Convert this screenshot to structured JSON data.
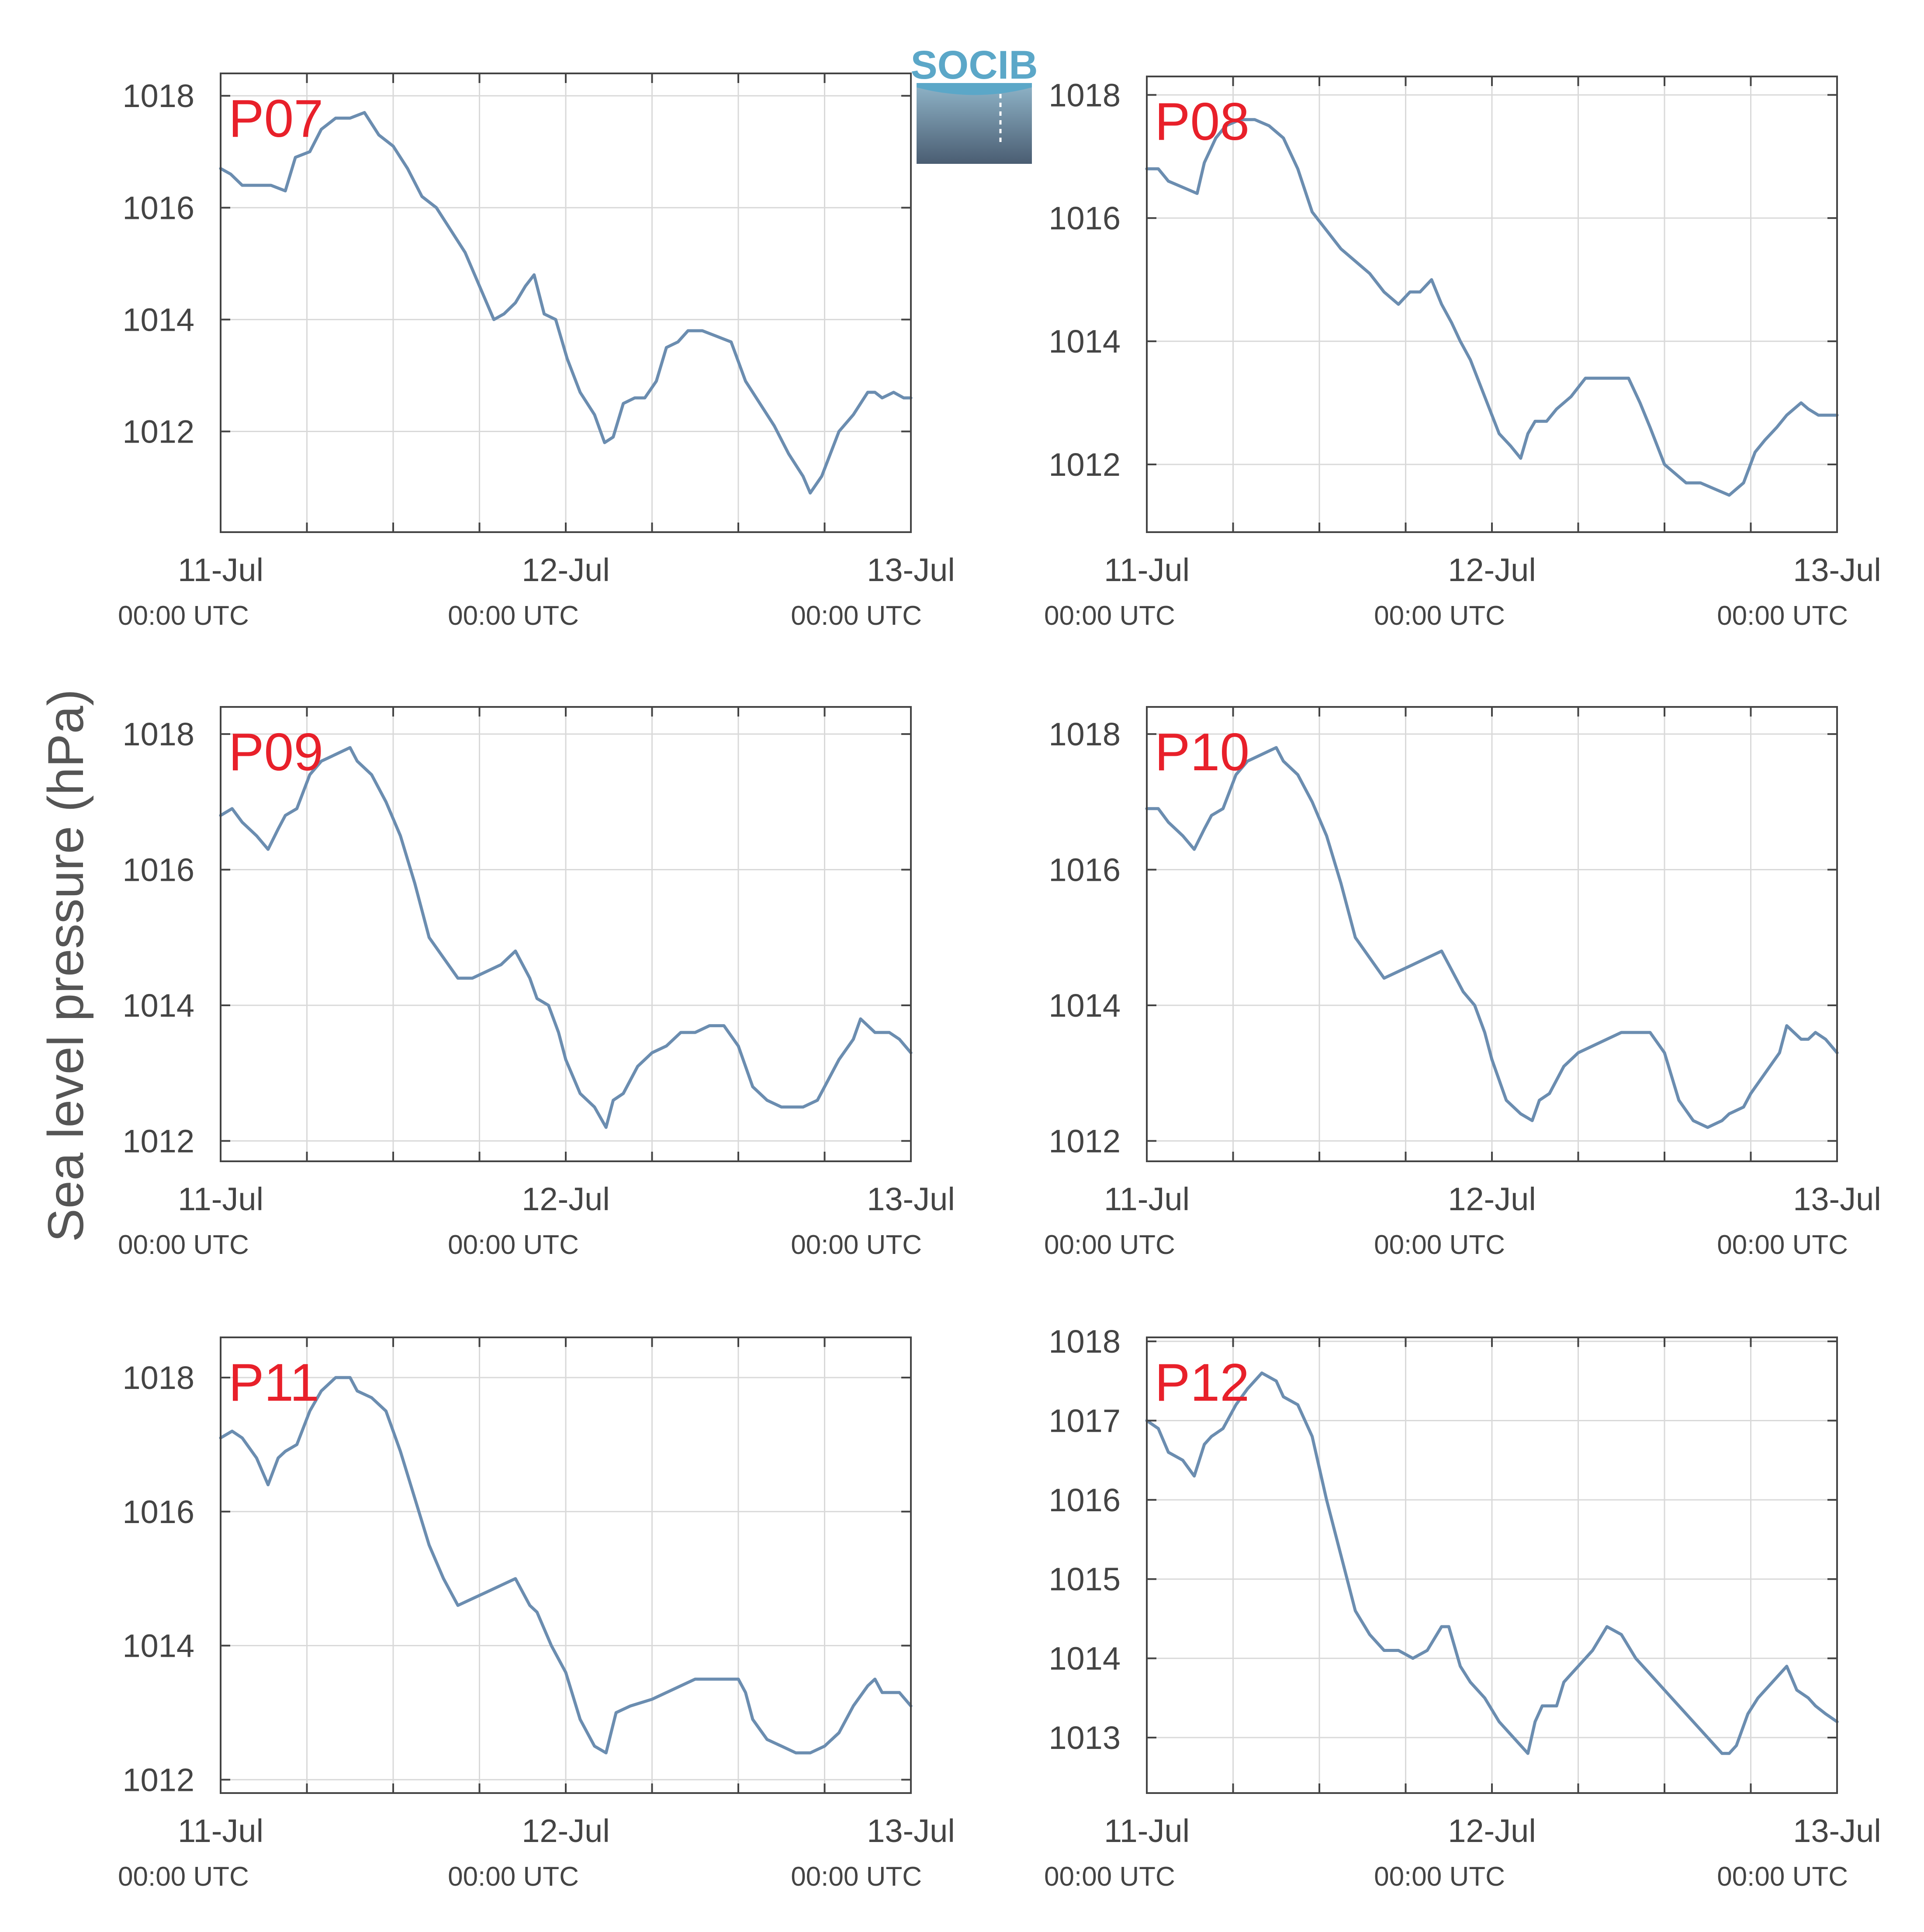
{
  "logo": {
    "text": "SOCIB"
  },
  "figure": {
    "ylabel": "Sea level pressure (hPa)"
  },
  "colors": {
    "line": "#6b8db0",
    "panel_label": "#e8202a",
    "grid": "#d9d9d9",
    "axis": "#444444"
  },
  "chart_data": [
    {
      "type": "line",
      "panel_label": "P07",
      "x_unit": "hours since 11-Jul 00:00 UTC",
      "xlim": [
        0,
        48
      ],
      "ylim": [
        1010.2,
        1018.4
      ],
      "y_ticks": [
        1012,
        1014,
        1016,
        1018
      ],
      "x_ticks": [
        0,
        6,
        12,
        18,
        24,
        30,
        36,
        42,
        48
      ],
      "x_tick_labels": [
        {
          "x": 0,
          "date": "11-Jul",
          "time": "00:00 UTC"
        },
        {
          "x": 24,
          "date": "12-Jul",
          "time": "00:00 UTC"
        },
        {
          "x": 48,
          "date": "13-Jul",
          "time": "00:00 UTC"
        }
      ],
      "x": [
        0,
        0.7,
        1.5,
        2.5,
        3.5,
        4.5,
        5.2,
        6.2,
        7,
        8,
        9,
        10,
        11,
        12,
        13,
        14,
        15,
        16,
        17,
        18,
        19,
        19.7,
        20.5,
        21.2,
        21.8,
        22.5,
        23.3,
        24.1,
        25,
        26,
        26.7,
        27.3,
        28,
        28.8,
        29.5,
        30.3,
        31,
        31.8,
        32.5,
        33.5,
        34.5,
        35.5,
        36.5,
        37.5,
        38.5,
        39.5,
        40.5,
        41,
        41.8,
        43,
        44,
        45,
        45.5,
        46,
        46.8,
        47.5,
        48
      ],
      "y": [
        1016.7,
        1016.6,
        1016.4,
        1016.4,
        1016.4,
        1016.3,
        1016.9,
        1017.0,
        1017.4,
        1017.6,
        1017.6,
        1017.7,
        1017.3,
        1017.1,
        1016.7,
        1016.2,
        1016.0,
        1015.6,
        1015.2,
        1014.6,
        1014.0,
        1014.1,
        1014.3,
        1014.6,
        1014.8,
        1014.1,
        1014.0,
        1013.3,
        1012.7,
        1012.3,
        1011.8,
        1011.9,
        1012.5,
        1012.6,
        1012.6,
        1012.9,
        1013.5,
        1013.6,
        1013.8,
        1013.8,
        1013.7,
        1013.6,
        1012.9,
        1012.5,
        1012.1,
        1011.6,
        1011.2,
        1010.9,
        1011.2,
        1012.0,
        1012.3,
        1012.7,
        1012.7,
        1012.6,
        1012.7,
        1012.6,
        1012.6
      ]
    },
    {
      "type": "line",
      "panel_label": "P08",
      "x_unit": "hours since 11-Jul 00:00 UTC",
      "xlim": [
        0,
        48
      ],
      "ylim": [
        1010.9,
        1018.3
      ],
      "y_ticks": [
        1012,
        1014,
        1016,
        1018
      ],
      "x_ticks": [
        0,
        6,
        12,
        18,
        24,
        30,
        36,
        42,
        48
      ],
      "x_tick_labels": [
        {
          "x": 0,
          "date": "11-Jul",
          "time": "00:00 UTC"
        },
        {
          "x": 24,
          "date": "12-Jul",
          "time": "00:00 UTC"
        },
        {
          "x": 48,
          "date": "13-Jul",
          "time": "00:00 UTC"
        }
      ],
      "x": [
        0,
        0.8,
        1.5,
        2.5,
        3.5,
        4,
        4.8,
        5.5,
        6.5,
        7.5,
        8.5,
        9.5,
        10.5,
        11.5,
        12.5,
        13.5,
        14.5,
        15.5,
        16.5,
        17.5,
        18.3,
        19,
        19.8,
        20.5,
        21.2,
        21.8,
        22.5,
        23.5,
        24.5,
        25.3,
        26,
        26.5,
        27,
        27.8,
        28.5,
        29.5,
        30.5,
        31.5,
        32.5,
        33.5,
        34.3,
        35,
        36,
        36.5,
        37.5,
        38.5,
        39.5,
        40.5,
        41.5,
        42.3,
        43,
        43.8,
        44.5,
        45.5,
        46,
        46.7,
        47.2,
        48
      ],
      "y": [
        1016.8,
        1016.8,
        1016.6,
        1016.5,
        1016.4,
        1016.9,
        1017.3,
        1017.5,
        1017.6,
        1017.6,
        1017.5,
        1017.3,
        1016.8,
        1016.1,
        1015.8,
        1015.5,
        1015.3,
        1015.1,
        1014.8,
        1014.6,
        1014.8,
        1014.8,
        1015.0,
        1014.6,
        1014.3,
        1014.0,
        1013.7,
        1013.1,
        1012.5,
        1012.3,
        1012.1,
        1012.5,
        1012.7,
        1012.7,
        1012.9,
        1013.1,
        1013.4,
        1013.4,
        1013.4,
        1013.4,
        1013.0,
        1012.6,
        1012.0,
        1011.9,
        1011.7,
        1011.7,
        1011.6,
        1011.5,
        1011.7,
        1012.2,
        1012.4,
        1012.6,
        1012.8,
        1013.0,
        1012.9,
        1012.8,
        1012.8,
        1012.8
      ]
    },
    {
      "type": "line",
      "panel_label": "P09",
      "x_unit": "hours since 11-Jul 00:00 UTC",
      "xlim": [
        0,
        48
      ],
      "ylim": [
        1011.7,
        1018.4
      ],
      "y_ticks": [
        1012,
        1014,
        1016,
        1018
      ],
      "x_ticks": [
        0,
        6,
        12,
        18,
        24,
        30,
        36,
        42,
        48
      ],
      "x_tick_labels": [
        {
          "x": 0,
          "date": "11-Jul",
          "time": "00:00 UTC"
        },
        {
          "x": 24,
          "date": "12-Jul",
          "time": "00:00 UTC"
        },
        {
          "x": 48,
          "date": "13-Jul",
          "time": "00:00 UTC"
        }
      ],
      "x": [
        0,
        0.8,
        1.5,
        2.5,
        3.3,
        4,
        4.5,
        5.3,
        6.2,
        7,
        8,
        9,
        9.5,
        10.5,
        11.5,
        12.5,
        13.5,
        14.5,
        15.5,
        16.5,
        17.5,
        18.5,
        19.5,
        20.5,
        21.5,
        22,
        22.8,
        23.5,
        24,
        25,
        26,
        26.8,
        27.3,
        28,
        29,
        30,
        31,
        32,
        33,
        34,
        35,
        36,
        37,
        38,
        39,
        40,
        40.5,
        41.5,
        42,
        43,
        44,
        44.5,
        45.5,
        46,
        46.5,
        47.2,
        48
      ],
      "y": [
        1016.8,
        1016.9,
        1016.7,
        1016.5,
        1016.3,
        1016.6,
        1016.8,
        1016.9,
        1017.4,
        1017.6,
        1017.7,
        1017.8,
        1017.6,
        1017.4,
        1017.0,
        1016.5,
        1015.8,
        1015.0,
        1014.7,
        1014.4,
        1014.4,
        1014.5,
        1014.6,
        1014.8,
        1014.4,
        1014.1,
        1014.0,
        1013.6,
        1013.2,
        1012.7,
        1012.5,
        1012.2,
        1012.6,
        1012.7,
        1013.1,
        1013.3,
        1013.4,
        1013.6,
        1013.6,
        1013.7,
        1013.7,
        1013.4,
        1012.8,
        1012.6,
        1012.5,
        1012.5,
        1012.5,
        1012.6,
        1012.8,
        1013.2,
        1013.5,
        1013.8,
        1013.6,
        1013.6,
        1013.6,
        1013.5,
        1013.3
      ]
    },
    {
      "type": "line",
      "panel_label": "P10",
      "x_unit": "hours since 11-Jul 00:00 UTC",
      "xlim": [
        0,
        48
      ],
      "ylim": [
        1011.7,
        1018.4
      ],
      "y_ticks": [
        1012,
        1014,
        1016,
        1018
      ],
      "x_ticks": [
        0,
        6,
        12,
        18,
        24,
        30,
        36,
        42,
        48
      ],
      "x_tick_labels": [
        {
          "x": 0,
          "date": "11-Jul",
          "time": "00:00 UTC"
        },
        {
          "x": 24,
          "date": "12-Jul",
          "time": "00:00 UTC"
        },
        {
          "x": 48,
          "date": "13-Jul",
          "time": "00:00 UTC"
        }
      ],
      "x": [
        0,
        0.8,
        1.5,
        2.5,
        3.3,
        4,
        4.5,
        5.3,
        6.2,
        7,
        8,
        9,
        9.5,
        10.5,
        11.5,
        12.5,
        13.5,
        14.5,
        15.5,
        16.5,
        17.5,
        18.5,
        19.5,
        20.5,
        21.5,
        22,
        22.8,
        23.5,
        24,
        25,
        26,
        26.8,
        27.3,
        28,
        29,
        30,
        31,
        32,
        33,
        34,
        35,
        36,
        37,
        38,
        39,
        40,
        40.5,
        41.5,
        42,
        43,
        44,
        44.5,
        45.5,
        46,
        46.5,
        47.2,
        48
      ],
      "y": [
        1016.9,
        1016.9,
        1016.7,
        1016.5,
        1016.3,
        1016.6,
        1016.8,
        1016.9,
        1017.4,
        1017.6,
        1017.7,
        1017.8,
        1017.6,
        1017.4,
        1017.0,
        1016.5,
        1015.8,
        1015.0,
        1014.7,
        1014.4,
        1014.5,
        1014.6,
        1014.7,
        1014.8,
        1014.4,
        1014.2,
        1014.0,
        1013.6,
        1013.2,
        1012.6,
        1012.4,
        1012.3,
        1012.6,
        1012.7,
        1013.1,
        1013.3,
        1013.4,
        1013.5,
        1013.6,
        1013.6,
        1013.6,
        1013.3,
        1012.6,
        1012.3,
        1012.2,
        1012.3,
        1012.4,
        1012.5,
        1012.7,
        1013.0,
        1013.3,
        1013.7,
        1013.5,
        1013.5,
        1013.6,
        1013.5,
        1013.3
      ]
    },
    {
      "type": "line",
      "panel_label": "P11",
      "x_unit": "hours since 11-Jul 00:00 UTC",
      "xlim": [
        0,
        48
      ],
      "ylim": [
        1011.8,
        1018.6
      ],
      "y_ticks": [
        1012,
        1014,
        1016,
        1018
      ],
      "x_ticks": [
        0,
        6,
        12,
        18,
        24,
        30,
        36,
        42,
        48
      ],
      "x_tick_labels": [
        {
          "x": 0,
          "date": "11-Jul",
          "time": "00:00 UTC"
        },
        {
          "x": 24,
          "date": "12-Jul",
          "time": "00:00 UTC"
        },
        {
          "x": 48,
          "date": "13-Jul",
          "time": "00:00 UTC"
        }
      ],
      "x": [
        0,
        0.8,
        1.5,
        2.5,
        3.3,
        4,
        4.5,
        5.3,
        6.2,
        7,
        8,
        9,
        9.5,
        10.5,
        11.5,
        12.5,
        13.5,
        14.5,
        15.5,
        16.5,
        17.5,
        18.5,
        19.5,
        20.5,
        21.5,
        22,
        23,
        24,
        25,
        26,
        26.8,
        27.5,
        28.5,
        30,
        31,
        32,
        33,
        34,
        35,
        36,
        36.5,
        37,
        38,
        39,
        40,
        41,
        42,
        43,
        44,
        45,
        45.5,
        46,
        46.5,
        47.2,
        48
      ],
      "y": [
        1017.1,
        1017.2,
        1017.1,
        1016.8,
        1016.4,
        1016.8,
        1016.9,
        1017.0,
        1017.5,
        1017.8,
        1018.0,
        1018.0,
        1017.8,
        1017.7,
        1017.5,
        1016.9,
        1016.2,
        1015.5,
        1015.0,
        1014.6,
        1014.7,
        1014.8,
        1014.9,
        1015.0,
        1014.6,
        1014.5,
        1014.0,
        1013.6,
        1012.9,
        1012.5,
        1012.4,
        1013.0,
        1013.1,
        1013.2,
        1013.3,
        1013.4,
        1013.5,
        1013.5,
        1013.5,
        1013.5,
        1013.3,
        1012.9,
        1012.6,
        1012.5,
        1012.4,
        1012.4,
        1012.5,
        1012.7,
        1013.1,
        1013.4,
        1013.5,
        1013.3,
        1013.3,
        1013.3,
        1013.1
      ]
    },
    {
      "type": "line",
      "panel_label": "P12",
      "x_unit": "hours since 11-Jul 00:00 UTC",
      "xlim": [
        0,
        48
      ],
      "ylim": [
        1012.3,
        1018.05
      ],
      "y_ticks": [
        1013,
        1014,
        1015,
        1016,
        1017,
        1018
      ],
      "x_ticks": [
        0,
        6,
        12,
        18,
        24,
        30,
        36,
        42,
        48
      ],
      "x_tick_labels": [
        {
          "x": 0,
          "date": "11-Jul",
          "time": "00:00 UTC"
        },
        {
          "x": 24,
          "date": "12-Jul",
          "time": "00:00 UTC"
        },
        {
          "x": 48,
          "date": "13-Jul",
          "time": "00:00 UTC"
        }
      ],
      "x": [
        0,
        0.8,
        1.5,
        2.5,
        3.3,
        4,
        4.5,
        5.3,
        6.2,
        7,
        8,
        9,
        9.5,
        10.5,
        11.5,
        12.5,
        13.5,
        14.5,
        15.5,
        16.5,
        17.5,
        18.5,
        19.5,
        20.5,
        21,
        21.8,
        22.5,
        23.5,
        24.5,
        25.5,
        26.5,
        27,
        27.5,
        28.5,
        29,
        29.5,
        30,
        31,
        32,
        33,
        34,
        35,
        36,
        37,
        38,
        39,
        40,
        40.5,
        41,
        41.8,
        42.5,
        43.5,
        44.5,
        45.2,
        46,
        46.5,
        47.2,
        48
      ],
      "y": [
        1017.0,
        1016.9,
        1016.6,
        1016.5,
        1016.3,
        1016.7,
        1016.8,
        1016.9,
        1017.2,
        1017.4,
        1017.6,
        1017.5,
        1017.3,
        1017.2,
        1016.8,
        1016.0,
        1015.3,
        1014.6,
        1014.3,
        1014.1,
        1014.1,
        1014.0,
        1014.1,
        1014.4,
        1014.4,
        1013.9,
        1013.7,
        1013.5,
        1013.2,
        1013.0,
        1012.8,
        1013.2,
        1013.4,
        1013.4,
        1013.7,
        1013.8,
        1013.9,
        1014.1,
        1014.4,
        1014.3,
        1014.0,
        1013.8,
        1013.6,
        1013.4,
        1013.2,
        1013.0,
        1012.8,
        1012.8,
        1012.9,
        1013.3,
        1013.5,
        1013.7,
        1013.9,
        1013.6,
        1013.5,
        1013.4,
        1013.3,
        1013.2
      ]
    }
  ]
}
